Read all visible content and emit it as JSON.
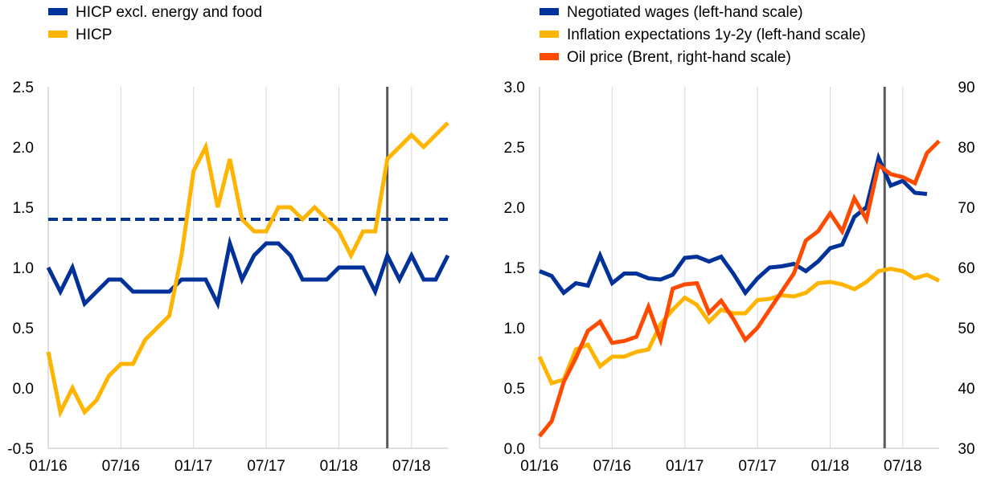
{
  "chart_data": [
    {
      "type": "line",
      "title": "",
      "xlabel": "",
      "ylabel": "",
      "x_tick_labels": [
        "01/16",
        "07/16",
        "01/17",
        "07/17",
        "01/18",
        "07/18"
      ],
      "x_tick_months": [
        0,
        6,
        12,
        18,
        24,
        30
      ],
      "x_range_months": [
        0,
        33
      ],
      "ylim": [
        -0.5,
        2.5
      ],
      "y_ticks": [
        "-0.5",
        "0.0",
        "0.5",
        "1.0",
        "1.5",
        "2.0",
        "2.5"
      ],
      "vertical_line_month": 28,
      "horizontal_reference": {
        "name": "HICP excl. energy and food average",
        "value": 1.4,
        "style": "dashed",
        "color": "#003299"
      },
      "series": [
        {
          "name": "HICP excl. energy and food",
          "color": "#003299",
          "values": [
            1.0,
            0.8,
            1.0,
            0.7,
            0.8,
            0.9,
            0.9,
            0.8,
            0.8,
            0.8,
            0.8,
            0.9,
            0.9,
            0.9,
            0.7,
            1.2,
            0.9,
            1.1,
            1.2,
            1.2,
            1.1,
            0.9,
            0.9,
            0.9,
            1.0,
            1.0,
            1.0,
            0.8,
            1.1,
            0.9,
            1.1,
            0.9,
            0.9,
            1.1
          ]
        },
        {
          "name": "HICP",
          "color": "#FFB400",
          "values": [
            0.3,
            -0.2,
            0.0,
            -0.2,
            -0.1,
            0.1,
            0.2,
            0.2,
            0.4,
            0.5,
            0.6,
            1.1,
            1.8,
            2.0,
            1.5,
            1.9,
            1.4,
            1.3,
            1.3,
            1.5,
            1.5,
            1.4,
            1.5,
            1.4,
            1.3,
            1.1,
            1.3,
            1.3,
            1.9,
            2.0,
            2.1,
            2.0,
            2.1,
            2.2
          ]
        }
      ],
      "legend": [
        "HICP excl. energy and food",
        "HICP"
      ]
    },
    {
      "type": "line",
      "title": "",
      "xlabel": "",
      "ylabel_left": "",
      "ylabel_right": "",
      "x_tick_labels": [
        "01/16",
        "07/16",
        "01/17",
        "07/17",
        "01/18",
        "07/18"
      ],
      "x_tick_months": [
        0,
        6,
        12,
        18,
        24,
        30
      ],
      "x_range_months": [
        0,
        33
      ],
      "ylim_left": [
        0.0,
        3.0
      ],
      "ylim_right": [
        30,
        90
      ],
      "y_ticks_left": [
        "0.0",
        "0.5",
        "1.0",
        "1.5",
        "2.0",
        "2.5",
        "3.0"
      ],
      "y_ticks_right": [
        "30",
        "40",
        "50",
        "60",
        "70",
        "80",
        "90"
      ],
      "vertical_line_month": 28.5,
      "series": [
        {
          "name": "Negotiated wages (left-hand scale)",
          "axis": "left",
          "color": "#003299",
          "x": [
            0,
            1,
            2,
            3,
            4,
            5,
            6,
            7,
            8,
            9,
            10,
            11,
            12,
            13,
            14,
            15,
            16,
            17,
            18,
            19,
            20,
            21,
            22,
            23,
            24,
            25,
            26,
            27,
            28,
            29,
            30,
            31,
            32
          ],
          "values": [
            1.47,
            1.43,
            1.29,
            1.37,
            1.35,
            1.6,
            1.37,
            1.45,
            1.45,
            1.41,
            1.4,
            1.44,
            1.58,
            1.59,
            1.55,
            1.59,
            1.45,
            1.29,
            1.41,
            1.5,
            1.51,
            1.53,
            1.47,
            1.55,
            1.66,
            1.69,
            1.92,
            2.0,
            2.41,
            2.18,
            2.22,
            2.12,
            2.11
          ]
        },
        {
          "name": "Inflation expectations 1y-2y (left-hand scale)",
          "axis": "left",
          "color": "#FFB400",
          "x": [
            0,
            1,
            2,
            3,
            4,
            5,
            6,
            7,
            8,
            9,
            10,
            11,
            12,
            13,
            14,
            15,
            16,
            17,
            18,
            19,
            20,
            21,
            22,
            23,
            24,
            25,
            26,
            27,
            28,
            29,
            30,
            31,
            32,
            33
          ],
          "values": [
            0.76,
            0.54,
            0.57,
            0.82,
            0.86,
            0.68,
            0.76,
            0.76,
            0.8,
            0.82,
            1.03,
            1.15,
            1.25,
            1.19,
            1.05,
            1.15,
            1.12,
            1.12,
            1.23,
            1.24,
            1.27,
            1.26,
            1.29,
            1.37,
            1.38,
            1.36,
            1.32,
            1.38,
            1.47,
            1.49,
            1.47,
            1.41,
            1.44,
            1.39
          ]
        },
        {
          "name": "Oil price (Brent, right-hand scale)",
          "axis": "right",
          "color": "#FF4B00",
          "x": [
            0,
            1,
            2,
            3,
            4,
            5,
            6,
            7,
            8,
            9,
            10,
            11,
            12,
            13,
            14,
            15,
            16,
            17,
            18,
            19,
            20,
            21,
            22,
            23,
            24,
            25,
            26,
            27,
            28,
            29,
            30,
            31,
            32,
            33
          ],
          "values": [
            32,
            34.5,
            41,
            45,
            49.5,
            51,
            47.5,
            47.8,
            48.5,
            53.5,
            48,
            56.5,
            57.2,
            57.4,
            52.5,
            54.5,
            51.5,
            48,
            50,
            53,
            56,
            59,
            64.5,
            66,
            69,
            66,
            71.5,
            68,
            77,
            75.5,
            75,
            74,
            79,
            81
          ]
        }
      ],
      "legend": [
        "Negotiated wages (left-hand scale)",
        "Inflation expectations 1y-2y (left-hand scale)",
        "Oil price (Brent, right-hand scale)"
      ]
    }
  ]
}
